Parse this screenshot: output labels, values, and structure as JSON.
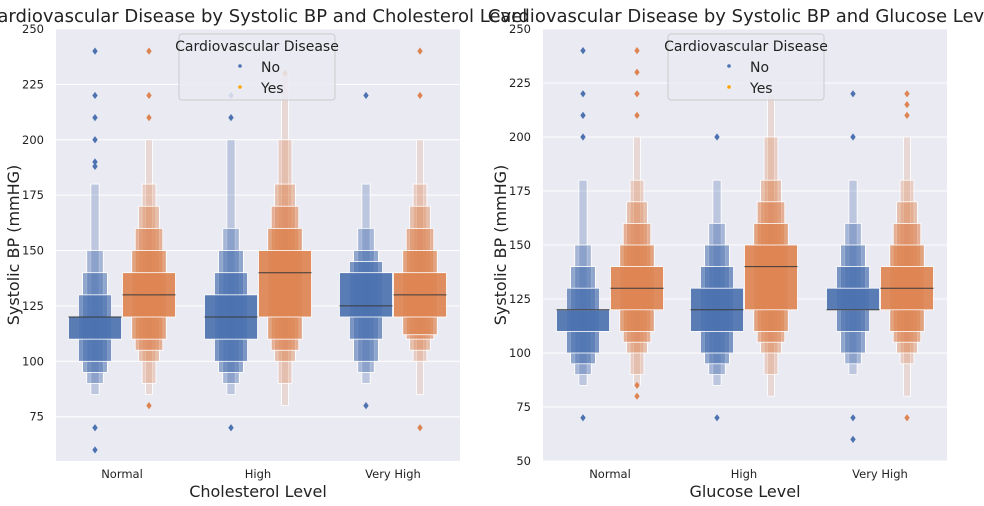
{
  "chart_data": [
    {
      "type": "boxenplot",
      "title": "Cardiovascular Disease by Systolic BP and Cholesterol Level",
      "xlabel": "Cholesterol Level",
      "ylabel": "Systolic BP (mmHG)",
      "categories": [
        "Normal",
        "High",
        "Very High"
      ],
      "yticks": [
        75,
        100,
        125,
        150,
        175,
        200,
        225,
        250
      ],
      "ylim": [
        55,
        250
      ],
      "grid": true,
      "legend": {
        "title": "Cardiovascular Disease",
        "placement": "top-center",
        "entries": [
          "No",
          "Yes"
        ]
      },
      "series": [
        {
          "name": "No",
          "color": "#4c72b0",
          "stats": [
            {
              "median": 120,
              "levels": [
                [
                  110,
                  120
                ],
                [
                  100,
                  130
                ],
                [
                  95,
                  140
                ],
                [
                  90,
                  150
                ],
                [
                  85,
                  180
                ]
              ],
              "outliers": [
                240,
                220,
                210,
                200,
                190,
                188,
                70,
                60
              ]
            },
            {
              "median": 120,
              "levels": [
                [
                  110,
                  130
                ],
                [
                  100,
                  140
                ],
                [
                  95,
                  150
                ],
                [
                  90,
                  160
                ],
                [
                  85,
                  200
                ]
              ],
              "outliers": [
                220,
                210,
                70
              ]
            },
            {
              "median": 125,
              "levels": [
                [
                  120,
                  140
                ],
                [
                  110,
                  145
                ],
                [
                  100,
                  150
                ],
                [
                  95,
                  160
                ],
                [
                  90,
                  180
                ]
              ],
              "outliers": [
                220,
                80
              ]
            }
          ]
        },
        {
          "name": "Yes",
          "color": "#dd8452",
          "stats": [
            {
              "median": 130,
              "levels": [
                [
                  120,
                  140
                ],
                [
                  110,
                  150
                ],
                [
                  105,
                  160
                ],
                [
                  100,
                  170
                ],
                [
                  90,
                  180
                ],
                [
                  85,
                  200
                ]
              ],
              "outliers": [
                240,
                220,
                210,
                80
              ]
            },
            {
              "median": 140,
              "levels": [
                [
                  120,
                  150
                ],
                [
                  110,
                  160
                ],
                [
                  105,
                  170
                ],
                [
                  100,
                  180
                ],
                [
                  90,
                  200
                ],
                [
                  80,
                  230
                ]
              ],
              "outliers": [
                230
              ]
            },
            {
              "median": 130,
              "levels": [
                [
                  120,
                  140
                ],
                [
                  112,
                  150
                ],
                [
                  110,
                  160
                ],
                [
                  105,
                  170
                ],
                [
                  100,
                  180
                ],
                [
                  85,
                  200
                ]
              ],
              "outliers": [
                240,
                220,
                70
              ]
            }
          ]
        }
      ]
    },
    {
      "type": "boxenplot",
      "title": "Cardiovascular Disease by Systolic BP and Glucose Level",
      "xlabel": "Glucose Level",
      "ylabel": "Systolic BP (mmHG)",
      "categories": [
        "Normal",
        "High",
        "Very High"
      ],
      "yticks": [
        50,
        75,
        100,
        125,
        150,
        175,
        200,
        225,
        250
      ],
      "ylim": [
        50,
        250
      ],
      "grid": true,
      "legend": {
        "title": "Cardiovascular Disease",
        "placement": "top-center",
        "entries": [
          "No",
          "Yes"
        ]
      },
      "series": [
        {
          "name": "No",
          "color": "#4c72b0",
          "stats": [
            {
              "median": 120,
              "levels": [
                [
                  110,
                  120
                ],
                [
                  100,
                  130
                ],
                [
                  95,
                  140
                ],
                [
                  90,
                  150
                ],
                [
                  85,
                  180
                ]
              ],
              "outliers": [
                240,
                220,
                210,
                200,
                70
              ]
            },
            {
              "median": 120,
              "levels": [
                [
                  110,
                  130
                ],
                [
                  100,
                  140
                ],
                [
                  95,
                  150
                ],
                [
                  90,
                  160
                ],
                [
                  85,
                  180
                ]
              ],
              "outliers": [
                200,
                70
              ]
            },
            {
              "median": 120,
              "levels": [
                [
                  120,
                  130
                ],
                [
                  110,
                  140
                ],
                [
                  100,
                  150
                ],
                [
                  95,
                  160
                ],
                [
                  90,
                  180
                ]
              ],
              "outliers": [
                220,
                200,
                70,
                60
              ]
            }
          ]
        },
        {
          "name": "Yes",
          "color": "#dd8452",
          "stats": [
            {
              "median": 130,
              "levels": [
                [
                  120,
                  140
                ],
                [
                  110,
                  150
                ],
                [
                  105,
                  160
                ],
                [
                  100,
                  170
                ],
                [
                  90,
                  180
                ],
                [
                  85,
                  200
                ]
              ],
              "outliers": [
                240,
                230,
                220,
                210,
                85,
                80
              ]
            },
            {
              "median": 140,
              "levels": [
                [
                  120,
                  150
                ],
                [
                  110,
                  160
                ],
                [
                  105,
                  170
                ],
                [
                  100,
                  180
                ],
                [
                  90,
                  200
                ],
                [
                  80,
                  220
                ]
              ],
              "outliers": []
            },
            {
              "median": 130,
              "levels": [
                [
                  120,
                  140
                ],
                [
                  110,
                  150
                ],
                [
                  105,
                  160
                ],
                [
                  100,
                  170
                ],
                [
                  95,
                  180
                ],
                [
                  80,
                  200
                ]
              ],
              "outliers": [
                220,
                215,
                210,
                70
              ]
            }
          ]
        }
      ]
    }
  ]
}
